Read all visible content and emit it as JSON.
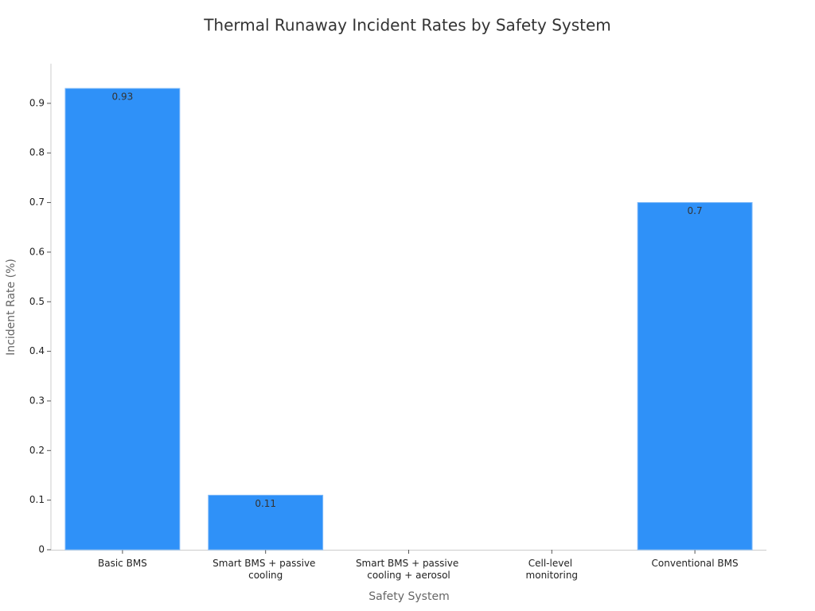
{
  "chart_data": {
    "type": "bar",
    "title": "Thermal Runaway Incident Rates by Safety System",
    "x_label": "Safety System",
    "y_label": "Incident Rate (%)",
    "categories": [
      "Basic BMS",
      "Smart BMS + passive cooling",
      "Smart BMS + passive cooling + aerosol",
      "Cell-level monitoring",
      "Conventional BMS"
    ],
    "values": [
      0.93,
      0.11,
      0,
      0,
      0.7
    ],
    "color": "#2f91f8",
    "ylim": [
      0,
      0.98
    ],
    "yticks": [
      0,
      0.1,
      0.2,
      0.3,
      0.4,
      0.5,
      0.6,
      0.7,
      0.8,
      0.9
    ],
    "grid": false
  }
}
